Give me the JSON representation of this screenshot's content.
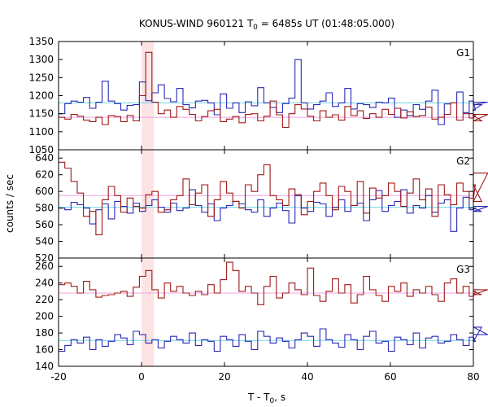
{
  "chart_data": {
    "type": "line",
    "title": "KONUS-WIND 960121 T",
    "title_sub": "0",
    "title_rest": " = 6485s UT (01:48:05.000)",
    "xlabel": "T - T",
    "xlabel_sub": "0",
    "xlabel_rest": ", s",
    "ylabel": "counts / sec",
    "xlim": [
      -20,
      80
    ],
    "x_ticks": [
      -20,
      0,
      20,
      40,
      60,
      80
    ],
    "highlight_interval": [
      0,
      3
    ],
    "highlight_color": "#fde4e4",
    "panels": [
      {
        "name": "G1",
        "ylim": [
          1050,
          1350
        ],
        "y_ticks": [
          1050,
          1100,
          1150,
          1200,
          1250,
          1300,
          1350
        ],
        "background_levels": [
          {
            "series": "blue",
            "value": 1180,
            "color": "#6fd6e8"
          },
          {
            "series": "red",
            "value": 1140,
            "color": "#f0a0e0"
          }
        ],
        "series": [
          {
            "color": "#2a2ab8",
            "step": 1.5,
            "values": [
              1150,
              1178,
              1185,
              1182,
              1195,
              1165,
              1182,
              1240,
              1185,
              1178,
              1160,
              1173,
              1175,
              1238,
              1186,
              1208,
              1230,
              1192,
              1183,
              1220,
              1175,
              1166,
              1185,
              1187,
              1180,
              1147,
              1205,
              1165,
              1180,
              1153,
              1183,
              1172,
              1222,
              1180,
              1167,
              1153,
              1178,
              1193,
              1300,
              1180,
              1163,
              1175,
              1185,
              1208,
              1170,
              1180,
              1220,
              1163,
              1178,
              1175,
              1167,
              1182,
              1180,
              1193,
              1140,
              1160,
              1145,
              1175,
              1162,
              1185,
              1215,
              1120,
              1177,
              1180,
              1210,
              1153,
              1185,
              1160,
              1175,
              1182
            ]
          },
          {
            "color": "#a01818",
            "step": 1.5,
            "values": [
              1140,
              1135,
              1148,
              1143,
              1132,
              1128,
              1140,
              1120,
              1145,
              1142,
              1128,
              1145,
              1130,
              1200,
              1320,
              1182,
              1150,
              1160,
              1140,
              1170,
              1162,
              1148,
              1130,
              1142,
              1158,
              1162,
              1128,
              1135,
              1142,
              1125,
              1148,
              1150,
              1130,
              1143,
              1185,
              1147,
              1112,
              1150,
              1175,
              1163,
              1143,
              1130,
              1158,
              1140,
              1147,
              1132,
              1170,
              1145,
              1158,
              1137,
              1150,
              1140,
              1162,
              1148,
              1165,
              1138,
              1155,
              1142,
              1145,
              1168,
              1135,
              1140,
              1148,
              1180,
              1132,
              1150,
              1138,
              1145,
              1130,
              1148
            ]
          }
        ]
      },
      {
        "name": "G2",
        "ylim": [
          520,
          650
        ],
        "y_ticks": [
          520,
          540,
          560,
          580,
          600,
          620,
          640
        ],
        "background_levels": [
          {
            "series": "blue",
            "value": 581,
            "color": "#6fd6e8"
          },
          {
            "series": "red",
            "value": 595,
            "color": "#f0a0e0"
          }
        ],
        "series": [
          {
            "color": "#2a2ab8",
            "step": 1.5,
            "values": [
              580,
              578,
              587,
              584,
              580,
              561,
              578,
              585,
              567,
              588,
              582,
              574,
              586,
              576,
              583,
              590,
              581,
              575,
              586,
              577,
              580,
              602,
              583,
              575,
              585,
              565,
              580,
              583,
              588,
              585,
              578,
              575,
              590,
              570,
              580,
              586,
              577,
              562,
              595,
              580,
              576,
              587,
              585,
              570,
              581,
              590,
              576,
              583,
              586,
              565,
              590,
              601,
              576,
              583,
              588,
              602,
              574,
              583,
              580,
              595,
              575,
              586,
              590,
              552,
              580,
              593,
              578,
              580,
              576,
              582
            ]
          },
          {
            "color": "#a01818",
            "step": 1.5,
            "values": [
              635,
              628,
              612,
              598,
              570,
              576,
              548,
              590,
              606,
              595,
              575,
              592,
              582,
              580,
              596,
              600,
              575,
              578,
              590,
              595,
              615,
              584,
              598,
              608,
              570,
              590,
              612,
              598,
              588,
              580,
              608,
              600,
              620,
              632,
              595,
              590,
              583,
              603,
              596,
              572,
              588,
              600,
              610,
              595,
              578,
              606,
              600,
              583,
              612,
              574,
              604,
              592,
              595,
              610,
              600,
              582,
              598,
              615,
              590,
              603,
              570,
              608,
              596,
              584,
              610,
              600,
              592,
              608,
              588,
              622
            ]
          }
        ]
      },
      {
        "name": "G3",
        "ylim": [
          140,
          270
        ],
        "y_ticks": [
          140,
          160,
          180,
          200,
          220,
          240,
          260
        ],
        "background_levels": [
          {
            "series": "blue",
            "value": 171,
            "color": "#6fd6e8"
          },
          {
            "series": "red",
            "value": 228,
            "color": "#f0a0e0"
          }
        ],
        "series": [
          {
            "color": "#2a2ab8",
            "step": 1.5,
            "values": [
              158,
              165,
              172,
              168,
              175,
              160,
              172,
              164,
              170,
              178,
              174,
              166,
              182,
              178,
              168,
              172,
              162,
              170,
              176,
              172,
              168,
              180,
              165,
              172,
              170,
              158,
              176,
              172,
              164,
              178,
              170,
              160,
              182,
              176,
              168,
              174,
              170,
              162,
              172,
              180,
              176,
              164,
              185,
              172,
              168,
              163,
              178,
              172,
              160,
              176,
              182,
              168,
              170,
              158,
              175,
              172,
              166,
              180,
              162,
              174,
              176,
              168,
              170,
              178,
              172,
              165,
              175,
              170,
              187,
              178
            ]
          },
          {
            "color": "#a01818",
            "step": 1.5,
            "values": [
              238,
              240,
              236,
              228,
              242,
              232,
              223,
              225,
              226,
              228,
              230,
              224,
              235,
              248,
              255,
              232,
              222,
              240,
              230,
              236,
              228,
              225,
              230,
              226,
              238,
              228,
              244,
              265,
              255,
              230,
              236,
              228,
              214,
              236,
              248,
              222,
              228,
              240,
              232,
              226,
              258,
              225,
              218,
              230,
              245,
              228,
              238,
              216,
              226,
              248,
              232,
              225,
              218,
              236,
              230,
              240,
              224,
              232,
              228,
              236,
              226,
              218,
              240,
              245,
              228,
              236,
              224,
              230,
              226,
              232
            ]
          }
        ]
      }
    ]
  }
}
